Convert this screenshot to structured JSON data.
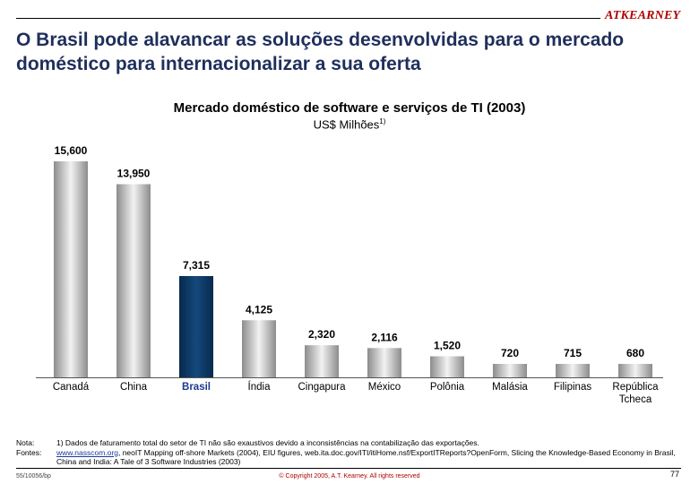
{
  "header": {
    "logo_text": "ATKEARNEY",
    "title": "O Brasil pode alavancar as soluções desenvolvidas para o mercado doméstico para internacionalizar a sua oferta"
  },
  "chart_data": {
    "type": "bar",
    "title": "Mercado doméstico de software e serviços de TI (2003)",
    "subtitle": "US$ Milhões",
    "subtitle_note": "1)",
    "categories": [
      "Canadá",
      "China",
      "Brasil",
      "Índia",
      "Cingapura",
      "México",
      "Polônia",
      "Malásia",
      "Filipinas",
      "República Tcheca"
    ],
    "values": [
      15600,
      13950,
      7315,
      4125,
      2320,
      2116,
      1520,
      720,
      715,
      680
    ],
    "labels": [
      "15,600",
      "13,950",
      "7,315",
      "4,125",
      "2,320",
      "2,116",
      "1,520",
      "720",
      "715",
      "680"
    ],
    "highlight": "Brasil",
    "ylim": [
      0,
      15600
    ],
    "colors": {
      "bar": "#b8b8b8",
      "highlight": "#0d3a66",
      "highlight_text": "#1f3a8c"
    }
  },
  "notes": {
    "nota_label": "Nota:",
    "nota_text": "1) Dados de faturamento total do setor de TI não são exaustivos devido a inconsistências na contabilização das exportações.",
    "fontes_label": "Fontes:",
    "fontes_link": "www.nasscom.org",
    "fontes_text": ", neoIT Mapping off-shore Markets (2004), EIU figures, web.ita.doc.gov/ITI/itiHome.nsf/ExportITReports?OpenForm, Slicing the Knowledge-Based Economy in Brasil, China and India: A Tale of 3 Software Industries (2003)"
  },
  "footer": {
    "code": "55/10056/bp",
    "copyright": "© Copyright 2005, A.T. Kearney. All rights reserved",
    "page": "77"
  }
}
